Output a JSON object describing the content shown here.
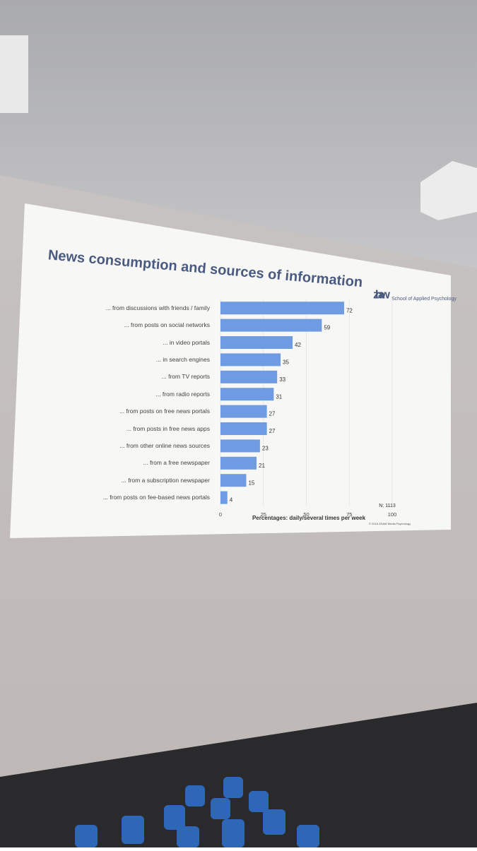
{
  "chart_data": {
    "type": "bar",
    "orientation": "horizontal",
    "title": "News consumption and sources of information",
    "logo": "zh aw",
    "institution": "School of Applied Psychology",
    "x_label": "Percentages: daily/several times per week",
    "note": "N: 1113",
    "footer": "© 2018 ZHAW Media Psychology",
    "categories": [
      "... from discussions with friends / family",
      "... from posts on social networks",
      "... in video portals",
      "... in search engines",
      "... from TV reports",
      "... from radio reports",
      "... from posts on free news portals",
      "... from posts in free news apps",
      "... from other online news sources",
      "... from a free newspaper",
      "... from a subscription newspaper",
      "... from posts on fee-based news portals"
    ],
    "values": [
      72,
      59,
      42,
      35,
      33,
      31,
      27,
      27,
      23,
      21,
      15,
      4
    ],
    "color": "#6f9be2",
    "xlim": [
      0,
      100
    ],
    "xticks": [
      0,
      25,
      50,
      75,
      100
    ],
    "grid": true
  }
}
